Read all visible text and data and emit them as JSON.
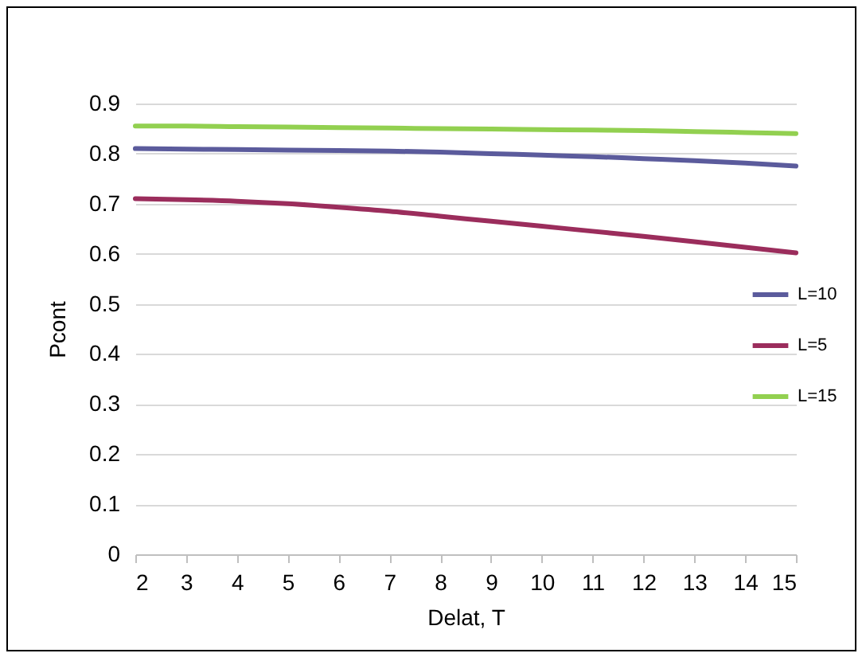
{
  "chart_data": {
    "type": "line",
    "xlabel": "Delat, T",
    "ylabel": "Pcont",
    "x": [
      2,
      3,
      4,
      5,
      6,
      7,
      8,
      9,
      10,
      11,
      12,
      13,
      14,
      15
    ],
    "series": [
      {
        "name": "L=10",
        "color": "#5b5b9c",
        "values": [
          0.81,
          0.809,
          0.808,
          0.807,
          0.806,
          0.805,
          0.803,
          0.8,
          0.797,
          0.794,
          0.79,
          0.786,
          0.781,
          0.775
        ]
      },
      {
        "name": "L=5",
        "color": "#9b2d5c",
        "values": [
          0.71,
          0.708,
          0.705,
          0.7,
          0.693,
          0.685,
          0.675,
          0.665,
          0.655,
          0.645,
          0.635,
          0.624,
          0.613,
          0.602
        ]
      },
      {
        "name": "L=15",
        "color": "#92d050",
        "values": [
          0.855,
          0.855,
          0.854,
          0.853,
          0.852,
          0.851,
          0.85,
          0.849,
          0.848,
          0.847,
          0.846,
          0.844,
          0.842,
          0.84
        ]
      }
    ],
    "xlim": [
      2,
      15
    ],
    "xticks": [
      2,
      3,
      4,
      5,
      6,
      7,
      8,
      9,
      10,
      11,
      12,
      13,
      14,
      15
    ],
    "ylim": [
      0,
      0.9
    ],
    "yticks": [
      0,
      0.1,
      0.2,
      0.3,
      0.4,
      0.5,
      0.6,
      0.7,
      0.8,
      0.9
    ],
    "grid": "y",
    "legend": "right",
    "marker": "none",
    "line_style": "solid"
  }
}
